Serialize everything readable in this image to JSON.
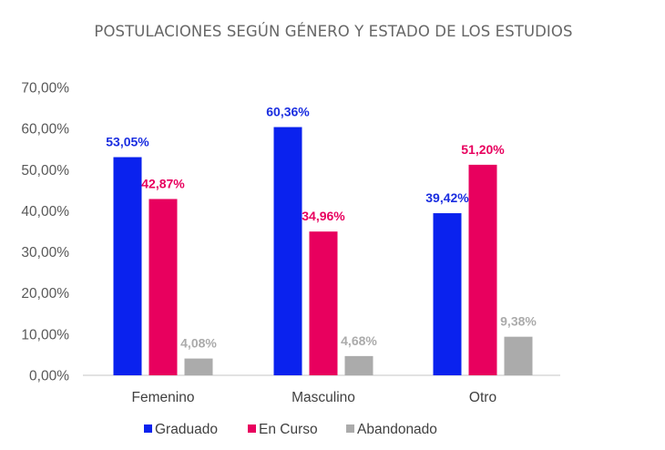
{
  "chart_data": {
    "type": "bar",
    "title": "POSTULACIONES SEGÚN GÉNERO Y ESTADO DE LOS ESTUDIOS",
    "xlabel": "",
    "ylabel": "",
    "categories": [
      "Femenino",
      "Masculino",
      "Otro"
    ],
    "series": [
      {
        "name": "Graduado",
        "color": "#0A22EE",
        "label_color": "#1A2EE0",
        "values": [
          53.05,
          60.36,
          39.42
        ],
        "labels": [
          "53,05%",
          "60,36%",
          "39,42%"
        ]
      },
      {
        "name": "En Curso",
        "color": "#E8005E",
        "label_color": "#E8005E",
        "values": [
          42.87,
          34.96,
          51.2
        ],
        "labels": [
          "42,87%",
          "34,96%",
          "51,20%"
        ]
      },
      {
        "name": "Abandonado",
        "color": "#ABABAB",
        "label_color": "#ABABAB",
        "values": [
          4.08,
          4.68,
          9.38
        ],
        "labels": [
          "4,08%",
          "4,68%",
          "9,38%"
        ]
      }
    ],
    "ylim": [
      0,
      70
    ],
    "yticks": [
      0,
      10,
      20,
      30,
      40,
      50,
      60,
      70
    ],
    "ytick_labels": [
      "0,00%",
      "10,00%",
      "20,00%",
      "30,00%",
      "40,00%",
      "50,00%",
      "60,00%",
      "70,00%"
    ],
    "grid": false,
    "legend": {
      "position": "bottom",
      "entries": [
        "Graduado",
        "En Curso",
        "Abandonado"
      ]
    }
  }
}
